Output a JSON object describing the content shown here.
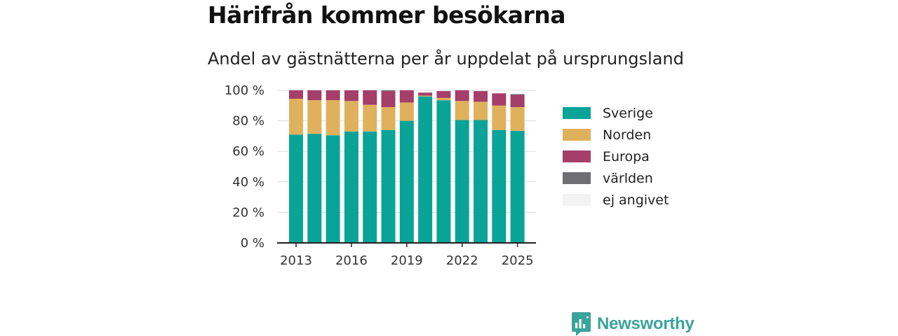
{
  "title": "Härifrån kommer besökarna",
  "subtitle": "Andel av gästnätterna per år uppdelat på ursprungsland",
  "brand": {
    "name": "Newsworthy",
    "color": "#3aa39a"
  },
  "chart_data": {
    "type": "bar",
    "stacked": true,
    "x": [
      2013,
      2014,
      2015,
      2016,
      2017,
      2018,
      2019,
      2020,
      2021,
      2022,
      2023,
      2024,
      2025
    ],
    "x_tick_labels": [
      "2013",
      "2016",
      "2019",
      "2022",
      "2025"
    ],
    "x_tick_values": [
      2013,
      2016,
      2019,
      2022,
      2025
    ],
    "ylim": [
      0,
      100
    ],
    "y_ticks": [
      0,
      20,
      40,
      60,
      80,
      100
    ],
    "y_tick_labels": [
      "0 %",
      "20 %",
      "40 %",
      "60 %",
      "80 %",
      "100 %"
    ],
    "grid": true,
    "legend_position": "right",
    "series": [
      {
        "name": "Sverige",
        "color": "#0aa398",
        "values": [
          71,
          71.5,
          70.5,
          73,
          73,
          74,
          80,
          96,
          93.5,
          80.5,
          80.5,
          74,
          73.5
        ]
      },
      {
        "name": "Norden",
        "color": "#e0b15c",
        "values": [
          23.5,
          22,
          23,
          20,
          17.5,
          15,
          12,
          0.5,
          1.5,
          12.5,
          12,
          16,
          15.5
        ]
      },
      {
        "name": "Europa",
        "color": "#a53e68",
        "values": [
          5.5,
          6.5,
          6.5,
          7,
          9.5,
          10.5,
          8,
          2,
          4.5,
          7,
          7,
          8,
          8
        ]
      },
      {
        "name": "världen",
        "color": "#6e6e73",
        "values": [
          0,
          0,
          0,
          0,
          0,
          0.5,
          0,
          0,
          0,
          0,
          0,
          0,
          0.5
        ]
      },
      {
        "name": "ej angivet",
        "color": "#f3f3f3",
        "values": [
          0,
          0,
          0,
          0,
          0,
          0,
          0,
          0,
          0,
          0,
          0,
          0,
          0
        ]
      }
    ]
  }
}
